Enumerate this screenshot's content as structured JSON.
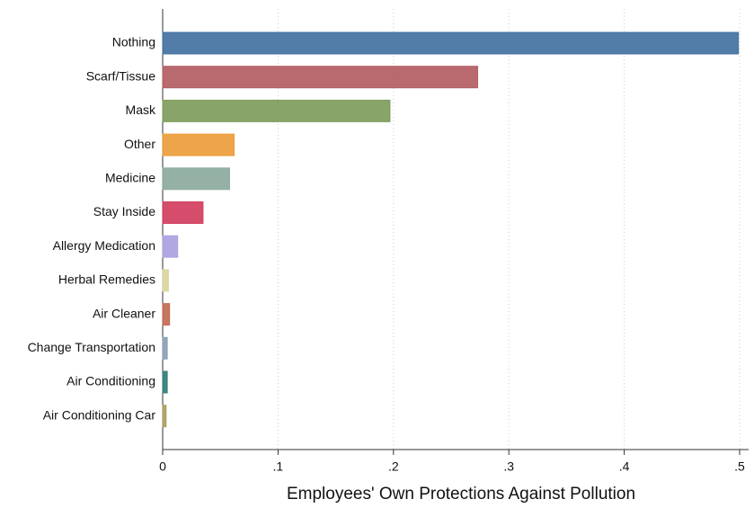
{
  "chart_data": {
    "type": "barh",
    "xlabel": "Employees' Own Protections Against Pollution",
    "categories": [
      "Nothing",
      "Scarf/Tissue",
      "Mask",
      "Other",
      "Medicine",
      "Stay Inside",
      "Allergy Medication",
      "Herbal Remedies",
      "Air Cleaner",
      "Change Transportation",
      "Air Conditioning",
      "Air Conditioning Car"
    ],
    "values": [
      0.499,
      0.273,
      0.197,
      0.062,
      0.058,
      0.035,
      0.013,
      0.005,
      0.006,
      0.004,
      0.004,
      0.003
    ],
    "colors": [
      "#3f6f9f",
      "#b05a5e",
      "#7b9a58",
      "#ec9a34",
      "#8aa89b",
      "#d23a5c",
      "#a99ee0",
      "#d9d49a",
      "#c0674e",
      "#8a9bb3",
      "#2f7a73",
      "#a99a5e"
    ],
    "xlim": [
      0,
      0.5
    ],
    "xticks": [
      0,
      {
        "value": 0.1,
        "label": ".1"
      },
      {
        "value": 0.2,
        "label": ".2"
      },
      {
        "value": 0.3,
        "label": ".3"
      },
      {
        "value": 0.4,
        "label": ".4"
      },
      {
        "value": 0.5,
        "label": ".5"
      }
    ],
    "grid": true
  }
}
